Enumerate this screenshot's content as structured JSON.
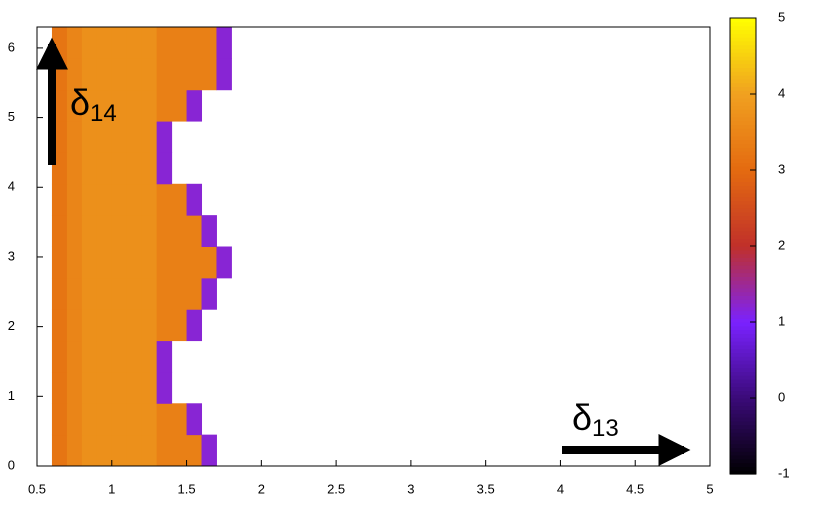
{
  "chart_data": {
    "type": "heatmap",
    "x": [
      0.6,
      0.7,
      0.8,
      0.9,
      1.0,
      1.1,
      1.2,
      1.3,
      1.4,
      1.5,
      1.6,
      1.7,
      1.8
    ],
    "y": [
      0,
      0.45,
      0.9,
      1.35,
      1.8,
      2.25,
      2.7,
      3.15,
      3.6,
      4.05,
      4.5,
      4.95,
      5.4,
      5.85,
      6.3
    ],
    "z": [
      [
        3.2,
        3.5,
        3.7,
        3.7,
        3.7,
        3.7,
        3.7,
        3.4,
        3.4,
        3.4,
        1.2,
        null
      ],
      [
        3.2,
        3.5,
        3.7,
        3.7,
        3.7,
        3.7,
        3.7,
        3.4,
        3.4,
        1.2,
        null,
        null
      ],
      [
        3.2,
        3.5,
        3.7,
        3.7,
        3.7,
        3.7,
        3.7,
        1.2,
        null,
        null,
        null,
        null
      ],
      [
        3.2,
        3.5,
        3.7,
        3.7,
        3.7,
        3.7,
        3.7,
        1.2,
        null,
        null,
        null,
        null
      ],
      [
        3.2,
        3.5,
        3.7,
        3.7,
        3.7,
        3.7,
        3.7,
        3.4,
        3.4,
        1.2,
        null,
        null
      ],
      [
        3.2,
        3.5,
        3.7,
        3.7,
        3.7,
        3.7,
        3.7,
        3.4,
        3.4,
        3.4,
        1.2,
        null
      ],
      [
        3.2,
        3.5,
        3.7,
        3.7,
        3.7,
        3.7,
        3.7,
        3.4,
        3.4,
        3.4,
        3.4,
        1.2
      ],
      [
        3.2,
        3.5,
        3.7,
        3.7,
        3.7,
        3.7,
        3.7,
        3.4,
        3.4,
        3.4,
        1.2,
        null
      ],
      [
        3.2,
        3.5,
        3.7,
        3.7,
        3.7,
        3.7,
        3.7,
        3.4,
        3.4,
        1.2,
        null,
        null
      ],
      [
        3.2,
        3.5,
        3.7,
        3.7,
        3.7,
        3.7,
        3.7,
        1.2,
        null,
        null,
        null,
        null
      ],
      [
        3.2,
        3.5,
        3.7,
        3.7,
        3.7,
        3.7,
        3.7,
        1.2,
        null,
        null,
        null,
        null
      ],
      [
        3.2,
        3.5,
        3.7,
        3.7,
        3.7,
        3.7,
        3.7,
        3.4,
        3.4,
        1.2,
        null,
        null
      ],
      [
        3.2,
        3.5,
        3.7,
        3.7,
        3.7,
        3.7,
        3.7,
        3.4,
        3.4,
        3.4,
        3.4,
        1.2
      ],
      [
        3.2,
        3.5,
        3.7,
        3.7,
        3.7,
        3.7,
        3.7,
        3.4,
        3.4,
        3.4,
        3.4,
        1.2
      ]
    ],
    "xlim": [
      0.5,
      5
    ],
    "xticks": [
      0.5,
      1,
      1.5,
      2,
      2.5,
      3,
      3.5,
      4,
      4.5,
      5
    ],
    "ylim": [
      0,
      6.3
    ],
    "yticks": [
      0,
      1,
      2,
      3,
      4,
      5,
      6
    ],
    "zlim": [
      -1,
      5
    ],
    "zticks": [
      -1,
      0,
      1,
      2,
      3,
      4,
      5
    ],
    "colorscale": [
      "#000000",
      "#3a0a78",
      "#7a22ff",
      "#c0302a",
      "#e46a10",
      "#f0a020",
      "#ffff00"
    ],
    "annotations": [
      {
        "text": "δ",
        "sub": "14"
      },
      {
        "text": "δ",
        "sub": "13"
      }
    ]
  }
}
